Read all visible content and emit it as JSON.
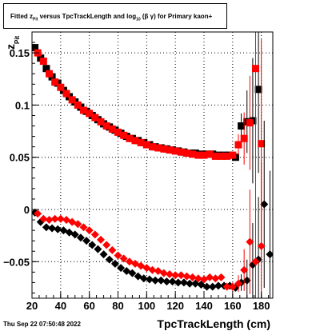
{
  "chart_data": {
    "type": "scatter",
    "title_parts": {
      "pre": "Fitted  z",
      "sub1": "Pit",
      "mid": "  versus TpcTrackLength and log",
      "sub2": "10",
      "post": "(β  γ) for Primary kaon+"
    },
    "xlabel": "TpcTrackLength (cm)",
    "ylabel": "z",
    "ylabel_sub": "Pit",
    "xlim": [
      20,
      188
    ],
    "ylim": [
      -0.085,
      0.17
    ],
    "xticks": [
      20,
      40,
      60,
      80,
      100,
      120,
      140,
      160,
      180
    ],
    "yticks": [
      -0.05,
      0,
      0.05,
      0.1,
      0.15
    ],
    "ytick_labels": [
      "−0.05",
      "0",
      "0.05",
      "0.1",
      "0.15"
    ],
    "grid": true,
    "timestamp": "Thu Sep 22 07:50:48 2022",
    "series": [
      {
        "marker": "square",
        "color": "#000000",
        "x": [
          22,
          26,
          30,
          34,
          38,
          42,
          46,
          50,
          54,
          58,
          62,
          66,
          70,
          74,
          78,
          82,
          86,
          90,
          94,
          98,
          102,
          106,
          110,
          114,
          118,
          122,
          126,
          130,
          134,
          138,
          142,
          146,
          150,
          154,
          158,
          162,
          166,
          170,
          174,
          178
        ],
        "y": [
          0.155,
          0.145,
          0.135,
          0.127,
          0.121,
          0.114,
          0.108,
          0.103,
          0.098,
          0.094,
          0.09,
          0.086,
          0.082,
          0.079,
          0.076,
          0.073,
          0.07,
          0.068,
          0.066,
          0.064,
          0.062,
          0.06,
          0.059,
          0.058,
          0.057,
          0.056,
          0.055,
          0.054,
          0.054,
          0.053,
          0.053,
          0.053,
          0.052,
          0.052,
          0.052,
          0.05,
          0.08,
          0.084,
          0.085,
          0.115
        ],
        "err": [
          0.003,
          0.002,
          0.002,
          0.002,
          0.002,
          0.002,
          0.002,
          0.002,
          0.002,
          0.002,
          0.002,
          0.002,
          0.002,
          0.002,
          0.002,
          0.002,
          0.002,
          0.002,
          0.002,
          0.002,
          0.002,
          0.002,
          0.002,
          0.002,
          0.002,
          0.002,
          0.002,
          0.002,
          0.002,
          0.002,
          0.002,
          0.002,
          0.002,
          0.002,
          0.002,
          0.003,
          0.012,
          0.03,
          0.06,
          0.08
        ]
      },
      {
        "marker": "square",
        "color": "#ff0000",
        "x": [
          24,
          28,
          32,
          36,
          40,
          44,
          48,
          52,
          56,
          60,
          64,
          68,
          72,
          76,
          80,
          84,
          88,
          92,
          96,
          100,
          104,
          108,
          112,
          116,
          120,
          124,
          128,
          132,
          136,
          140,
          144,
          148,
          152,
          156,
          160,
          164,
          168,
          172,
          176,
          180
        ],
        "y": [
          0.15,
          0.142,
          0.13,
          0.122,
          0.117,
          0.111,
          0.105,
          0.1,
          0.095,
          0.092,
          0.088,
          0.084,
          0.08,
          0.077,
          0.074,
          0.071,
          0.068,
          0.066,
          0.064,
          0.062,
          0.06,
          0.059,
          0.058,
          0.057,
          0.056,
          0.055,
          0.054,
          0.053,
          0.052,
          0.052,
          0.053,
          0.051,
          0.051,
          0.051,
          0.052,
          0.062,
          0.068,
          0.083,
          0.135,
          0.063
        ],
        "err": [
          0.003,
          0.002,
          0.002,
          0.002,
          0.002,
          0.002,
          0.002,
          0.002,
          0.002,
          0.002,
          0.002,
          0.002,
          0.002,
          0.002,
          0.002,
          0.002,
          0.002,
          0.002,
          0.002,
          0.002,
          0.002,
          0.002,
          0.002,
          0.002,
          0.002,
          0.002,
          0.002,
          0.002,
          0.002,
          0.002,
          0.002,
          0.002,
          0.002,
          0.002,
          0.003,
          0.01,
          0.025,
          0.045,
          0.12,
          0.1
        ]
      },
      {
        "marker": "diamond",
        "color": "#000000",
        "x": [
          22,
          26,
          30,
          34,
          38,
          42,
          46,
          50,
          54,
          58,
          62,
          66,
          70,
          74,
          78,
          82,
          86,
          90,
          94,
          98,
          102,
          106,
          110,
          114,
          118,
          122,
          126,
          130,
          134,
          138,
          142,
          146,
          150,
          154,
          158,
          162,
          166,
          170,
          174,
          178,
          182,
          186
        ],
        "y": [
          -0.003,
          -0.012,
          -0.017,
          -0.018,
          -0.019,
          -0.02,
          -0.022,
          -0.024,
          -0.027,
          -0.03,
          -0.034,
          -0.038,
          -0.043,
          -0.048,
          -0.052,
          -0.056,
          -0.059,
          -0.061,
          -0.064,
          -0.066,
          -0.067,
          -0.068,
          -0.068,
          -0.069,
          -0.069,
          -0.07,
          -0.07,
          -0.071,
          -0.071,
          -0.072,
          -0.074,
          -0.074,
          -0.073,
          -0.073,
          -0.073,
          -0.075,
          -0.07,
          -0.068,
          -0.053,
          -0.048,
          0.005,
          -0.043
        ],
        "err": [
          0.002,
          0.002,
          0.002,
          0.002,
          0.002,
          0.002,
          0.002,
          0.002,
          0.002,
          0.002,
          0.002,
          0.002,
          0.002,
          0.002,
          0.002,
          0.002,
          0.002,
          0.002,
          0.002,
          0.002,
          0.002,
          0.002,
          0.002,
          0.002,
          0.002,
          0.002,
          0.002,
          0.002,
          0.002,
          0.002,
          0.002,
          0.002,
          0.002,
          0.002,
          0.002,
          0.003,
          0.008,
          0.02,
          0.04,
          0.06,
          0.08,
          0.08
        ]
      },
      {
        "marker": "diamond",
        "color": "#ff0000",
        "x": [
          24,
          28,
          32,
          36,
          40,
          44,
          48,
          52,
          56,
          60,
          64,
          68,
          72,
          76,
          80,
          84,
          88,
          92,
          96,
          100,
          104,
          108,
          112,
          116,
          120,
          124,
          128,
          132,
          136,
          140,
          144,
          148,
          152,
          156,
          160,
          164,
          168,
          172,
          176,
          180
        ],
        "y": [
          -0.004,
          -0.009,
          -0.01,
          -0.009,
          -0.009,
          -0.01,
          -0.012,
          -0.014,
          -0.017,
          -0.02,
          -0.024,
          -0.029,
          -0.034,
          -0.039,
          -0.044,
          -0.047,
          -0.05,
          -0.052,
          -0.054,
          -0.056,
          -0.058,
          -0.059,
          -0.061,
          -0.062,
          -0.063,
          -0.063,
          -0.064,
          -0.065,
          -0.066,
          -0.067,
          -0.065,
          -0.066,
          -0.065,
          -0.074,
          -0.074,
          -0.071,
          -0.058,
          -0.031,
          -0.05,
          -0.035
        ],
        "err": [
          0.002,
          0.002,
          0.002,
          0.002,
          0.002,
          0.002,
          0.002,
          0.002,
          0.002,
          0.002,
          0.002,
          0.002,
          0.002,
          0.002,
          0.002,
          0.002,
          0.002,
          0.002,
          0.002,
          0.002,
          0.002,
          0.002,
          0.002,
          0.002,
          0.002,
          0.002,
          0.002,
          0.002,
          0.002,
          0.002,
          0.002,
          0.002,
          0.002,
          0.003,
          0.004,
          0.008,
          0.02,
          0.05,
          0.07,
          0.08
        ]
      }
    ]
  }
}
